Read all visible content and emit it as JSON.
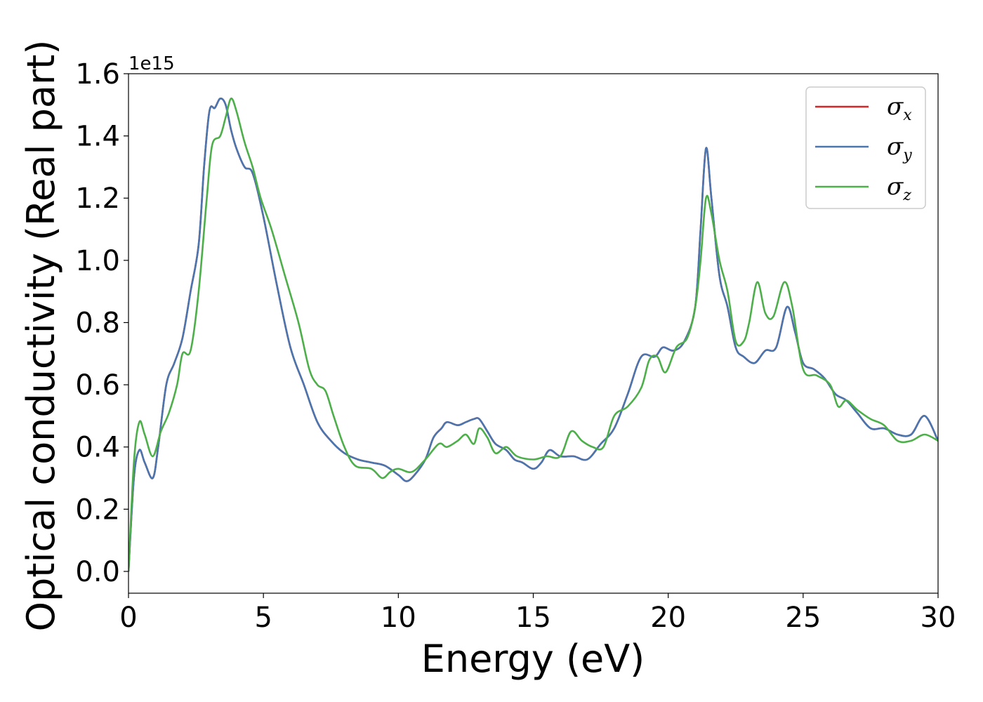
{
  "chart_data": {
    "type": "line",
    "title": "",
    "xlabel": "Energy (eV)",
    "ylabel": "Optical conductivity (Real part)",
    "y_offset_label": "1e15",
    "xlim": [
      0,
      30
    ],
    "ylim": [
      -0.07,
      1.6
    ],
    "y_scale_multiplier": 1000000000000000.0,
    "x_ticks": [
      0,
      5,
      10,
      15,
      20,
      25,
      30
    ],
    "x_tick_labels": [
      "0",
      "5",
      "10",
      "15",
      "20",
      "25",
      "30"
    ],
    "y_ticks": [
      0.0,
      0.2,
      0.4,
      0.6,
      0.8,
      1.0,
      1.2,
      1.4,
      1.6
    ],
    "y_tick_labels": [
      "0.0",
      "0.2",
      "0.4",
      "0.6",
      "0.8",
      "1.0",
      "1.2",
      "1.4",
      "1.6"
    ],
    "grid": false,
    "legend_position": "top-right",
    "series": [
      {
        "name": "σ",
        "subscript": "x",
        "color": "#d62728",
        "points": [
          [
            0,
            0.0
          ],
          [
            0.2,
            0.3
          ],
          [
            0.4,
            0.39
          ],
          [
            0.6,
            0.35
          ],
          [
            0.9,
            0.3
          ],
          [
            1.1,
            0.4
          ],
          [
            1.4,
            0.6
          ],
          [
            1.7,
            0.67
          ],
          [
            2.0,
            0.75
          ],
          [
            2.3,
            0.9
          ],
          [
            2.6,
            1.05
          ],
          [
            2.8,
            1.3
          ],
          [
            3.0,
            1.48
          ],
          [
            3.2,
            1.49
          ],
          [
            3.4,
            1.52
          ],
          [
            3.6,
            1.5
          ],
          [
            3.8,
            1.42
          ],
          [
            4.0,
            1.36
          ],
          [
            4.3,
            1.3
          ],
          [
            4.6,
            1.28
          ],
          [
            5.0,
            1.14
          ],
          [
            5.5,
            0.92
          ],
          [
            6.0,
            0.72
          ],
          [
            6.5,
            0.6
          ],
          [
            7.0,
            0.48
          ],
          [
            7.5,
            0.42
          ],
          [
            8.0,
            0.38
          ],
          [
            8.5,
            0.36
          ],
          [
            9.0,
            0.35
          ],
          [
            9.5,
            0.34
          ],
          [
            10.0,
            0.31
          ],
          [
            10.3,
            0.29
          ],
          [
            10.6,
            0.31
          ],
          [
            11.0,
            0.36
          ],
          [
            11.3,
            0.43
          ],
          [
            11.6,
            0.46
          ],
          [
            11.8,
            0.48
          ],
          [
            12.2,
            0.47
          ],
          [
            12.5,
            0.48
          ],
          [
            12.8,
            0.49
          ],
          [
            13.0,
            0.49
          ],
          [
            13.3,
            0.45
          ],
          [
            13.6,
            0.41
          ],
          [
            14.0,
            0.39
          ],
          [
            14.3,
            0.36
          ],
          [
            14.6,
            0.35
          ],
          [
            15.0,
            0.33
          ],
          [
            15.3,
            0.35
          ],
          [
            15.6,
            0.39
          ],
          [
            16.0,
            0.37
          ],
          [
            16.5,
            0.37
          ],
          [
            17.0,
            0.36
          ],
          [
            17.5,
            0.41
          ],
          [
            18.0,
            0.46
          ],
          [
            18.5,
            0.57
          ],
          [
            19.0,
            0.69
          ],
          [
            19.5,
            0.69
          ],
          [
            19.8,
            0.72
          ],
          [
            20.2,
            0.71
          ],
          [
            20.6,
            0.74
          ],
          [
            21.0,
            0.85
          ],
          [
            21.2,
            1.1
          ],
          [
            21.4,
            1.36
          ],
          [
            21.6,
            1.2
          ],
          [
            21.9,
            0.95
          ],
          [
            22.2,
            0.85
          ],
          [
            22.5,
            0.72
          ],
          [
            22.8,
            0.69
          ],
          [
            23.2,
            0.67
          ],
          [
            23.6,
            0.71
          ],
          [
            24.0,
            0.72
          ],
          [
            24.4,
            0.85
          ],
          [
            24.7,
            0.77
          ],
          [
            25.0,
            0.67
          ],
          [
            25.4,
            0.65
          ],
          [
            25.8,
            0.62
          ],
          [
            26.2,
            0.57
          ],
          [
            26.6,
            0.55
          ],
          [
            27.0,
            0.51
          ],
          [
            27.5,
            0.46
          ],
          [
            28.0,
            0.46
          ],
          [
            28.5,
            0.44
          ],
          [
            29.0,
            0.44
          ],
          [
            29.5,
            0.5
          ],
          [
            30.0,
            0.42
          ]
        ]
      },
      {
        "name": "σ",
        "subscript": "y",
        "color": "#4a76b0",
        "points": [
          [
            0,
            0.0
          ],
          [
            0.2,
            0.3
          ],
          [
            0.4,
            0.39
          ],
          [
            0.6,
            0.35
          ],
          [
            0.9,
            0.3
          ],
          [
            1.1,
            0.4
          ],
          [
            1.4,
            0.6
          ],
          [
            1.7,
            0.67
          ],
          [
            2.0,
            0.75
          ],
          [
            2.3,
            0.9
          ],
          [
            2.6,
            1.05
          ],
          [
            2.8,
            1.3
          ],
          [
            3.0,
            1.48
          ],
          [
            3.2,
            1.49
          ],
          [
            3.4,
            1.52
          ],
          [
            3.6,
            1.5
          ],
          [
            3.8,
            1.42
          ],
          [
            4.0,
            1.36
          ],
          [
            4.3,
            1.3
          ],
          [
            4.6,
            1.28
          ],
          [
            5.0,
            1.14
          ],
          [
            5.5,
            0.92
          ],
          [
            6.0,
            0.72
          ],
          [
            6.5,
            0.6
          ],
          [
            7.0,
            0.48
          ],
          [
            7.5,
            0.42
          ],
          [
            8.0,
            0.38
          ],
          [
            8.5,
            0.36
          ],
          [
            9.0,
            0.35
          ],
          [
            9.5,
            0.34
          ],
          [
            10.0,
            0.31
          ],
          [
            10.3,
            0.29
          ],
          [
            10.6,
            0.31
          ],
          [
            11.0,
            0.36
          ],
          [
            11.3,
            0.43
          ],
          [
            11.6,
            0.46
          ],
          [
            11.8,
            0.48
          ],
          [
            12.2,
            0.47
          ],
          [
            12.5,
            0.48
          ],
          [
            12.8,
            0.49
          ],
          [
            13.0,
            0.49
          ],
          [
            13.3,
            0.45
          ],
          [
            13.6,
            0.41
          ],
          [
            14.0,
            0.39
          ],
          [
            14.3,
            0.36
          ],
          [
            14.6,
            0.35
          ],
          [
            15.0,
            0.33
          ],
          [
            15.3,
            0.35
          ],
          [
            15.6,
            0.39
          ],
          [
            16.0,
            0.37
          ],
          [
            16.5,
            0.37
          ],
          [
            17.0,
            0.36
          ],
          [
            17.5,
            0.41
          ],
          [
            18.0,
            0.46
          ],
          [
            18.5,
            0.57
          ],
          [
            19.0,
            0.69
          ],
          [
            19.5,
            0.69
          ],
          [
            19.8,
            0.72
          ],
          [
            20.2,
            0.71
          ],
          [
            20.6,
            0.74
          ],
          [
            21.0,
            0.85
          ],
          [
            21.2,
            1.1
          ],
          [
            21.4,
            1.36
          ],
          [
            21.6,
            1.2
          ],
          [
            21.9,
            0.95
          ],
          [
            22.2,
            0.85
          ],
          [
            22.5,
            0.72
          ],
          [
            22.8,
            0.69
          ],
          [
            23.2,
            0.67
          ],
          [
            23.6,
            0.71
          ],
          [
            24.0,
            0.72
          ],
          [
            24.4,
            0.85
          ],
          [
            24.7,
            0.77
          ],
          [
            25.0,
            0.67
          ],
          [
            25.4,
            0.65
          ],
          [
            25.8,
            0.62
          ],
          [
            26.2,
            0.57
          ],
          [
            26.6,
            0.55
          ],
          [
            27.0,
            0.51
          ],
          [
            27.5,
            0.46
          ],
          [
            28.0,
            0.46
          ],
          [
            28.5,
            0.44
          ],
          [
            29.0,
            0.44
          ],
          [
            29.5,
            0.5
          ],
          [
            30.0,
            0.42
          ]
        ]
      },
      {
        "name": "σ",
        "subscript": "z",
        "color": "#4daf4a",
        "points": [
          [
            0,
            0.0
          ],
          [
            0.2,
            0.35
          ],
          [
            0.4,
            0.48
          ],
          [
            0.6,
            0.44
          ],
          [
            0.9,
            0.37
          ],
          [
            1.2,
            0.45
          ],
          [
            1.5,
            0.51
          ],
          [
            1.8,
            0.6
          ],
          [
            2.0,
            0.7
          ],
          [
            2.3,
            0.71
          ],
          [
            2.6,
            0.9
          ],
          [
            2.9,
            1.2
          ],
          [
            3.1,
            1.37
          ],
          [
            3.4,
            1.4
          ],
          [
            3.6,
            1.46
          ],
          [
            3.8,
            1.52
          ],
          [
            4.0,
            1.48
          ],
          [
            4.3,
            1.38
          ],
          [
            4.6,
            1.3
          ],
          [
            4.9,
            1.2
          ],
          [
            5.3,
            1.1
          ],
          [
            5.8,
            0.95
          ],
          [
            6.3,
            0.8
          ],
          [
            6.7,
            0.65
          ],
          [
            7.0,
            0.6
          ],
          [
            7.3,
            0.58
          ],
          [
            7.6,
            0.5
          ],
          [
            8.0,
            0.4
          ],
          [
            8.4,
            0.34
          ],
          [
            9.0,
            0.33
          ],
          [
            9.4,
            0.3
          ],
          [
            9.7,
            0.32
          ],
          [
            10.0,
            0.33
          ],
          [
            10.5,
            0.32
          ],
          [
            11.0,
            0.36
          ],
          [
            11.5,
            0.41
          ],
          [
            11.8,
            0.4
          ],
          [
            12.2,
            0.42
          ],
          [
            12.5,
            0.44
          ],
          [
            12.8,
            0.41
          ],
          [
            13.0,
            0.46
          ],
          [
            13.3,
            0.43
          ],
          [
            13.6,
            0.38
          ],
          [
            14.0,
            0.4
          ],
          [
            14.4,
            0.37
          ],
          [
            15.0,
            0.36
          ],
          [
            15.5,
            0.37
          ],
          [
            16.0,
            0.37
          ],
          [
            16.4,
            0.45
          ],
          [
            16.8,
            0.42
          ],
          [
            17.2,
            0.4
          ],
          [
            17.6,
            0.4
          ],
          [
            18.0,
            0.5
          ],
          [
            18.5,
            0.53
          ],
          [
            19.0,
            0.59
          ],
          [
            19.3,
            0.68
          ],
          [
            19.6,
            0.69
          ],
          [
            19.9,
            0.64
          ],
          [
            20.3,
            0.72
          ],
          [
            20.7,
            0.75
          ],
          [
            21.0,
            0.85
          ],
          [
            21.2,
            1.0
          ],
          [
            21.4,
            1.2
          ],
          [
            21.6,
            1.15
          ],
          [
            21.9,
            1.0
          ],
          [
            22.2,
            0.9
          ],
          [
            22.5,
            0.74
          ],
          [
            22.8,
            0.74
          ],
          [
            23.0,
            0.8
          ],
          [
            23.3,
            0.93
          ],
          [
            23.6,
            0.83
          ],
          [
            23.9,
            0.82
          ],
          [
            24.3,
            0.93
          ],
          [
            24.6,
            0.85
          ],
          [
            25.0,
            0.65
          ],
          [
            25.5,
            0.63
          ],
          [
            26.0,
            0.6
          ],
          [
            26.3,
            0.53
          ],
          [
            26.6,
            0.55
          ],
          [
            27.0,
            0.52
          ],
          [
            27.5,
            0.49
          ],
          [
            28.0,
            0.47
          ],
          [
            28.5,
            0.42
          ],
          [
            29.0,
            0.42
          ],
          [
            29.5,
            0.44
          ],
          [
            30.0,
            0.42
          ]
        ]
      }
    ]
  }
}
